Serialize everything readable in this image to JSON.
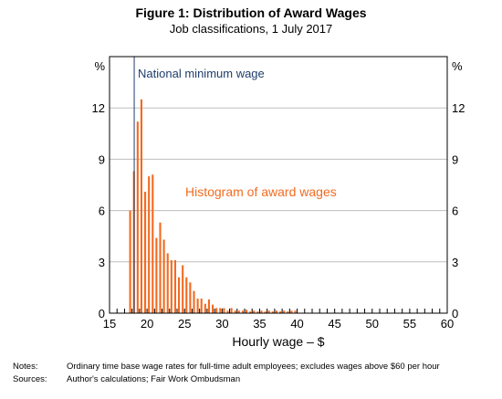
{
  "chart_data": {
    "type": "bar",
    "title": "Figure 1: Distribution of Award Wages",
    "subtitle": "Job classifications, 1 July 2017",
    "xlabel": "Hourly wage – $",
    "ylabel_left": "%",
    "ylabel_right": "%",
    "xlim": [
      15,
      60
    ],
    "ylim": [
      0,
      15
    ],
    "x_ticks": [
      15,
      20,
      25,
      30,
      35,
      40,
      45,
      50,
      55,
      60
    ],
    "y_ticks": [
      0,
      3,
      6,
      9,
      12
    ],
    "bin_width": 0.5,
    "grid": true,
    "bar_color": "#f26b21",
    "minimum_wage_line": {
      "x": 18.29,
      "label": "National minimum wage",
      "color": "#1f3d6b"
    },
    "series_label": "Histogram of award wages",
    "bins": [
      {
        "x": 17.5,
        "value": 6.0
      },
      {
        "x": 18.0,
        "value": 8.3
      },
      {
        "x": 18.5,
        "value": 11.2
      },
      {
        "x": 19.0,
        "value": 12.5
      },
      {
        "x": 19.5,
        "value": 7.1
      },
      {
        "x": 20.0,
        "value": 8.0
      },
      {
        "x": 20.5,
        "value": 8.1
      },
      {
        "x": 21.0,
        "value": 4.4
      },
      {
        "x": 21.5,
        "value": 5.3
      },
      {
        "x": 22.0,
        "value": 4.3
      },
      {
        "x": 22.5,
        "value": 3.5
      },
      {
        "x": 23.0,
        "value": 3.1
      },
      {
        "x": 23.5,
        "value": 3.1
      },
      {
        "x": 24.0,
        "value": 2.1
      },
      {
        "x": 24.5,
        "value": 2.8
      },
      {
        "x": 25.0,
        "value": 2.1
      },
      {
        "x": 25.5,
        "value": 1.8
      },
      {
        "x": 26.0,
        "value": 1.3
      },
      {
        "x": 26.5,
        "value": 0.85
      },
      {
        "x": 27.0,
        "value": 0.85
      },
      {
        "x": 27.5,
        "value": 0.55
      },
      {
        "x": 28.0,
        "value": 0.8
      },
      {
        "x": 28.5,
        "value": 0.5
      },
      {
        "x": 29.0,
        "value": 0.3
      },
      {
        "x": 29.5,
        "value": 0.3
      },
      {
        "x": 30.0,
        "value": 0.3
      },
      {
        "x": 30.5,
        "value": 0.15
      },
      {
        "x": 31.0,
        "value": 0.3
      },
      {
        "x": 31.5,
        "value": 0.15
      },
      {
        "x": 32.0,
        "value": 0.15
      },
      {
        "x": 32.5,
        "value": 0.15
      },
      {
        "x": 33.0,
        "value": 0.2
      },
      {
        "x": 33.5,
        "value": 0.1
      },
      {
        "x": 34.0,
        "value": 0.15
      },
      {
        "x": 34.5,
        "value": 0.1
      },
      {
        "x": 35.0,
        "value": 0.15
      },
      {
        "x": 35.5,
        "value": 0.1
      },
      {
        "x": 36.0,
        "value": 0.15
      },
      {
        "x": 36.5,
        "value": 0.1
      },
      {
        "x": 37.0,
        "value": 0.15
      },
      {
        "x": 37.5,
        "value": 0.1
      },
      {
        "x": 38.0,
        "value": 0.15
      },
      {
        "x": 38.5,
        "value": 0.1
      },
      {
        "x": 39.0,
        "value": 0.15
      },
      {
        "x": 39.5,
        "value": 0.15
      }
    ]
  },
  "notes": {
    "notes_label": "Notes:",
    "notes_text": "Ordinary time base wage rates for full-time adult employees; excludes wages above $60 per hour",
    "sources_label": "Sources:",
    "sources_text": "Author's calculations; Fair Work Ombudsman"
  }
}
